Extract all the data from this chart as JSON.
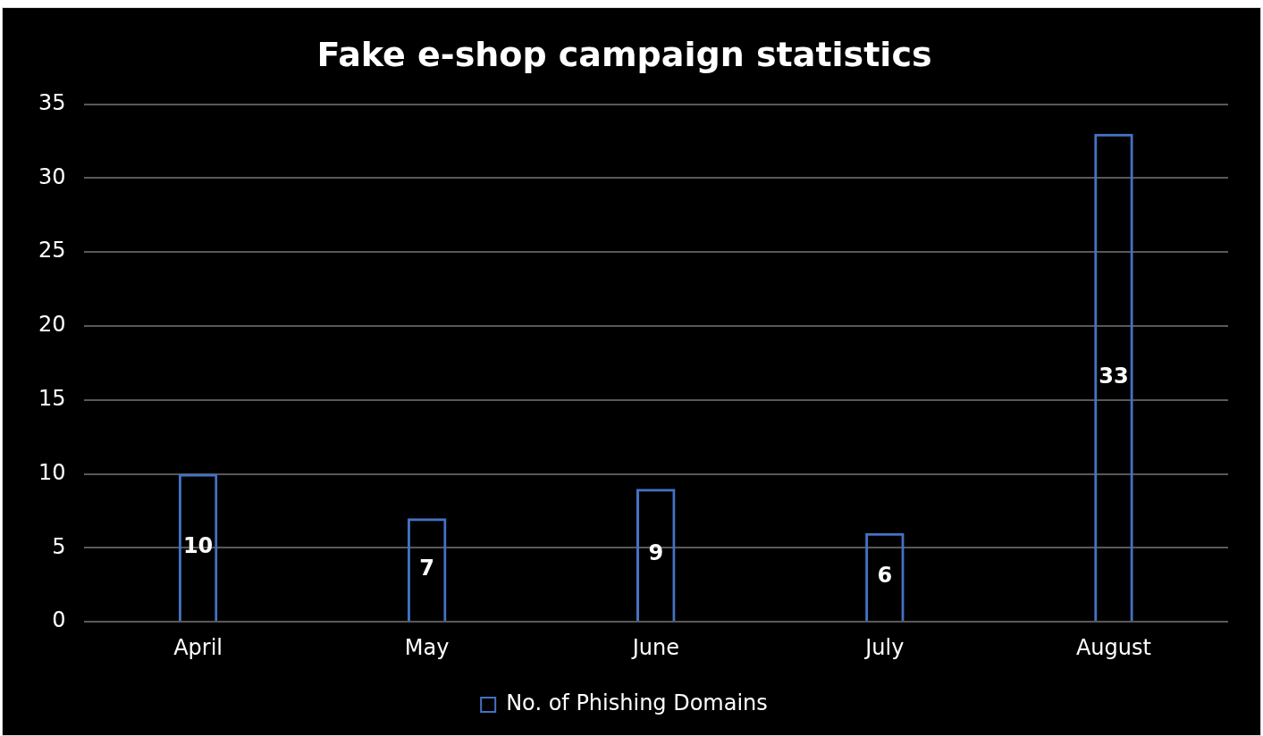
{
  "chart_data": {
    "type": "bar",
    "title": "Fake e-shop campaign statistics",
    "categories": [
      "April",
      "May",
      "June",
      "July",
      "August"
    ],
    "series": [
      {
        "name": "No. of Phishing Domains",
        "color": "#4472c4",
        "values": [
          10,
          7,
          9,
          6,
          33
        ]
      }
    ],
    "ylim": [
      0,
      35
    ],
    "yticks": [
      0,
      5,
      10,
      15,
      20,
      25,
      30,
      35
    ],
    "grid": "y",
    "legend": "bottom",
    "data_labels": true
  }
}
